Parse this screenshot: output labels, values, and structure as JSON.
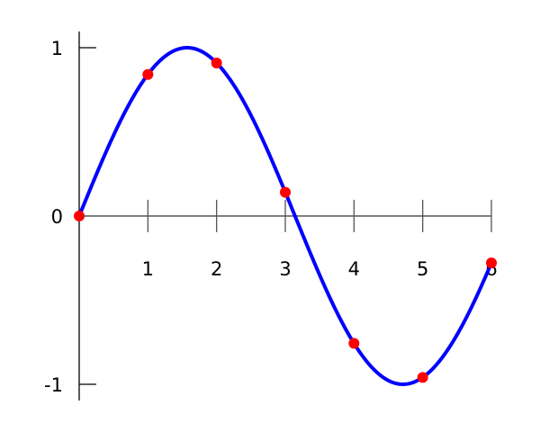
{
  "chart_data": {
    "type": "line",
    "title": "",
    "xlabel": "",
    "ylabel": "",
    "xlim": [
      0,
      6
    ],
    "ylim": [
      -1,
      1
    ],
    "grid": false,
    "x_ticks": [
      "1",
      "2",
      "3",
      "4",
      "5",
      "6"
    ],
    "y_ticks": [
      "1",
      "0",
      "-1"
    ],
    "curve": {
      "function": "sin(x)",
      "color": "#0000ff"
    },
    "points": {
      "color": "#ff0000",
      "x": [
        0,
        1,
        2,
        3,
        4,
        5,
        6
      ],
      "y": [
        0,
        0.841,
        0.909,
        0.141,
        -0.757,
        -0.959,
        -0.279
      ]
    }
  }
}
